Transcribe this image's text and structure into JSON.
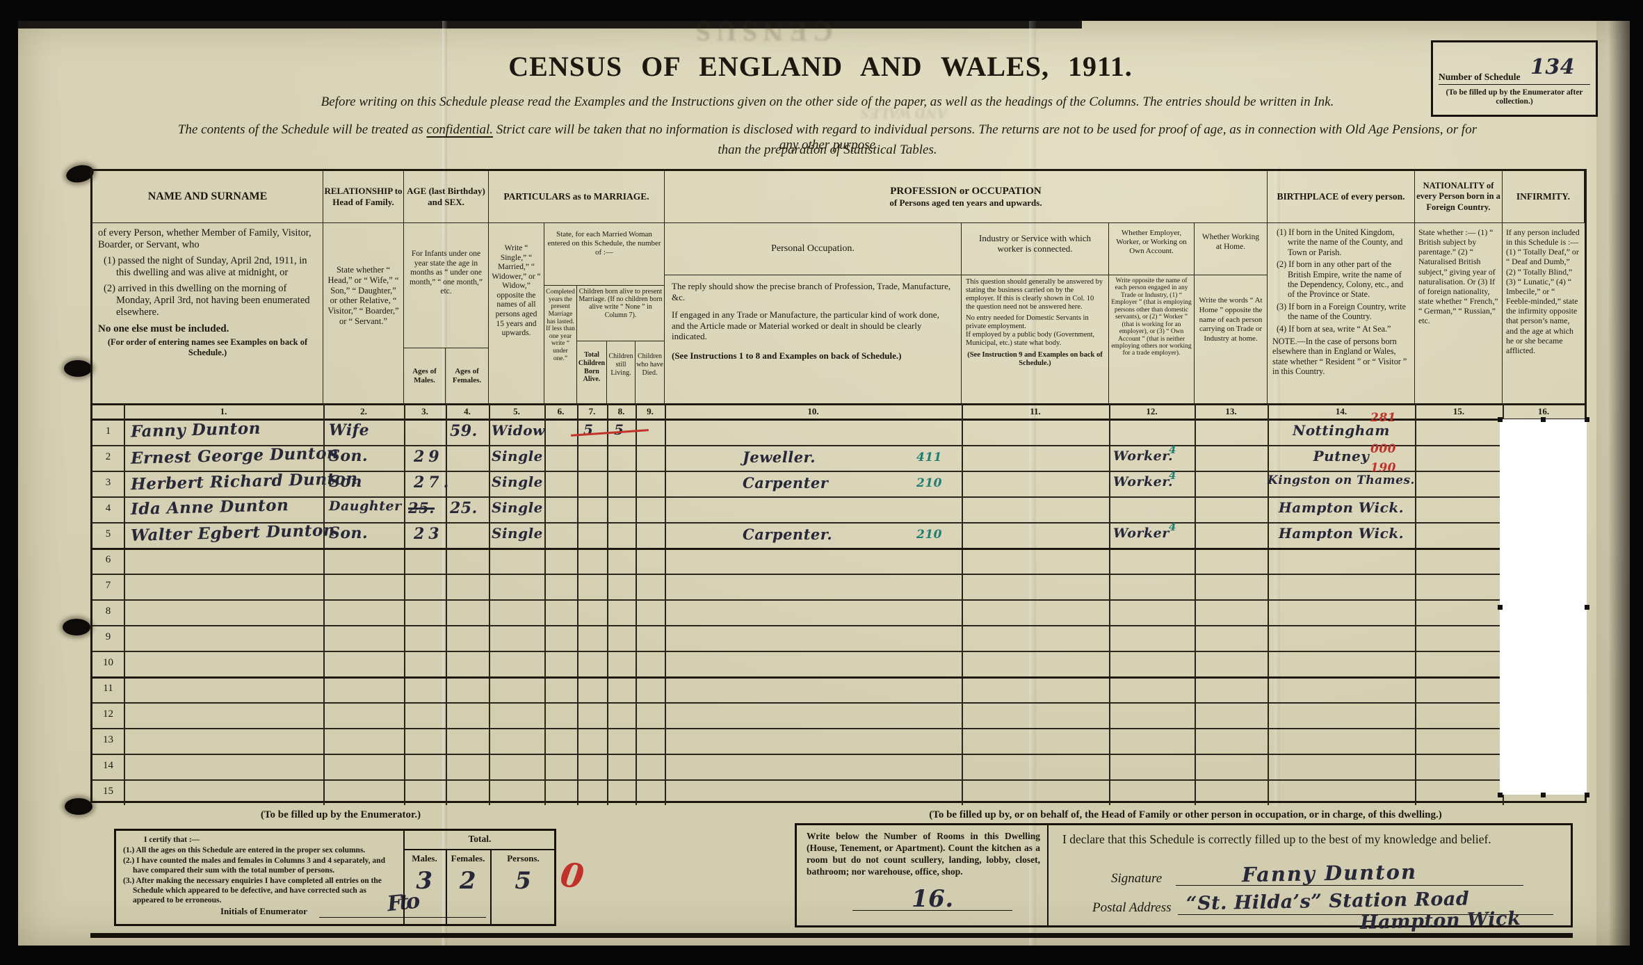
{
  "title": "CENSUS OF ENGLAND AND WALES, 1911.",
  "schedule": {
    "number_label": "Number of Schedule",
    "number_value": "134",
    "number_note": "(To be filled up by the Enumerator after collection.)"
  },
  "instructions": {
    "line1": "Before writing on this Schedule please read the Examples and the Instructions given on the other side of the paper, as well as the headings of the Columns.  The entries should be written in Ink.",
    "line2a": "The contents of the Schedule will be treated as ",
    "confidential": "confidential.",
    "line2b": "  Strict care will be taken that no information is disclosed with regard to individual persons.  The returns are not to be used for proof of age, as in connection with Old Age Pensions, or for any other purpose",
    "line3": "than the preparation of Statistical Tables."
  },
  "columns": {
    "numbers": [
      "1.",
      "2.",
      "3.",
      "4.",
      "5.",
      "6.",
      "7.",
      "8.",
      "9.",
      "10.",
      "11.",
      "12.",
      "13.",
      "14.",
      "15.",
      "16."
    ],
    "name": {
      "label": "NAME AND SURNAME",
      "intro": "of every Person, whether Member of Family, Visitor, Boarder, or Servant, who",
      "item1": "(1) passed the night of Sunday, April 2nd, 1911, in this dwelling and was alive at midnight, or",
      "item2": "(2) arrived in this dwelling on the morning of Monday, April 3rd, not having been enumerated elsewhere.",
      "note1": "No one else must be included.",
      "note2": "(For order of entering names see Examples on back of Schedule.)"
    },
    "relationship": {
      "label": "RELATIONSHIP to Head of Family.",
      "desc": "State whether “ Head,” or “ Wife,” “ Son,” “ Daughter,” or other Relative, “ Visitor,” “ Boarder,” or “ Servant.”"
    },
    "age": {
      "label": "AGE (last Birthday) and SEX.",
      "infants": "For Infants under one year state the age in months as “ under one month,” “ one month,” etc.",
      "males": "Ages of Males.",
      "females": "Ages of Females."
    },
    "marriage": {
      "group": "PARTICULARS as to MARRIAGE.",
      "single": "Write “ Single,” “ Married,” “ Widower,” or “ Widow,” opposite the names of all persons aged 15 years and upwards.",
      "married_woman": "State, for each Married Woman entered on this Schedule, the number of :—",
      "years": "Completed years the present Marriage has lasted. If less than one year write “ under one.”",
      "children_group": "Children born alive to present Marriage. (If no children born alive write “ None ” in Column 7).",
      "born": "Total Children Born Alive.",
      "living": "Children still Living.",
      "died": "Children who have Died."
    },
    "profession": {
      "group": "PROFESSION or OCCUPATION",
      "group_sub": "of Persons aged ten years and upwards.",
      "personal_label": "Personal Occupation.",
      "personal_p1": "The reply should show the precise branch of Profession, Trade, Manufacture, &c.",
      "personal_p2": "If engaged in any Trade or Manufacture, the particular kind of work done, and the Article made or Material worked or dealt in should be clearly indicated.",
      "personal_p3": "(See Instructions 1 to 8 and Examples on back of Schedule.)",
      "industry_label": "Industry or Service with which worker is connected.",
      "industry_p1": "This question should generally be answered by stating the business carried on by the employer.  If this is clearly shown in Col. 10 the question need not be answered here.",
      "industry_p2": "No entry needed for Domestic Servants in private employment.",
      "industry_p3": "If employed by a public body (Government, Municipal, etc.) state what body.",
      "industry_p4": "(See Instruction 9 and Examples on back of Schedule.)",
      "employer_label": "Whether Employer, Worker, or Working on Own Account.",
      "employer_desc": "Write opposite the name of each person engaged in any Trade or Industry, (1) “ Employer ” (that is employing persons other than domestic servants), or (2) “ Worker ” (that is working for an employer), or (3) “ Own Account ” (that is neither employing others nor working for a trade employer).",
      "home_label": "Whether Working at Home.",
      "home_desc": "Write the words “ At Home ” opposite the name of each person carrying on Trade or Industry at home."
    },
    "birthplace": {
      "label": "BIRTHPLACE of every person.",
      "item1": "(1) If born in the United Kingdom, write the name of the County, and Town or Parish.",
      "item2": "(2) If born in any other part of the British Empire, write the name of the Dependency, Colony, etc., and of the Province or State.",
      "item3": "(3) If born in a Foreign Country, write the name of the Country.",
      "item4": "(4) If born at sea, write “ At Sea.”",
      "note": "NOTE.—In the case of persons born elsewhere than in England or Wales, state whether “ Resident ” or “ Visitor ” in this Country."
    },
    "nationality": {
      "label": "NATIONALITY of every Person born in a Foreign Country.",
      "desc": "State whether :— (1) “ British subject by parentage.” (2) “ Naturalised British subject,” giving year of naturalisation. Or (3) If of foreign nationality, state whether “ French,” “ German,” “ Russian,” etc."
    },
    "infirmity": {
      "label": "INFIRMITY.",
      "desc": "If any person included in this Schedule is :— (1) “ Totally Deaf,” or “ Deaf and Dumb,” (2) “ Totally Blind,” (3) “ Lunatic,” (4) “ Imbecile,” or “ Feeble-minded,” state the infirmity opposite that person’s name, and the age at which he or she became afflicted."
    }
  },
  "rows": [
    {
      "num": "1",
      "name": "Fanny Dunton",
      "relationship": "Wife",
      "age_male": "",
      "age_male_struck": "",
      "age_female": "59.",
      "marriage": "Widow",
      "children_born": "5",
      "children_living": "5",
      "children_red_strike": true,
      "occupation": "",
      "occupation_code": "",
      "employer": "",
      "employer_code": "",
      "birthplace": "Nottingham",
      "birthplace_code": "281"
    },
    {
      "num": "2",
      "name": "Ernest George Dunton",
      "relationship": "Son.",
      "age_male": "29",
      "age_male_struck": "",
      "age_female": "",
      "marriage": "Single",
      "children_born": "",
      "children_living": "",
      "children_red_strike": false,
      "occupation": "Jeweller.",
      "occupation_code": "411",
      "employer": "Worker.",
      "employer_code": "4",
      "birthplace": "Putney",
      "birthplace_code": "000"
    },
    {
      "num": "3",
      "name": "Herbert Richard Dunton",
      "relationship": "Son",
      "age_male": "27.",
      "age_male_struck": "",
      "age_female": "",
      "marriage": "Single",
      "children_born": "",
      "children_living": "",
      "children_red_strike": false,
      "occupation": "Carpenter",
      "occupation_code": "210",
      "employer": "Worker.",
      "employer_code": "4",
      "birthplace": "Kingston on Thames.",
      "birthplace_code": "190"
    },
    {
      "num": "4",
      "name": "Ida Anne Dunton",
      "relationship": "Daughter",
      "age_male": "",
      "age_male_struck": "25.",
      "age_female": "25.",
      "marriage": "Single",
      "children_born": "",
      "children_living": "",
      "children_red_strike": false,
      "occupation": "",
      "occupation_code": "",
      "employer": "",
      "employer_code": "",
      "birthplace": "Hampton Wick.",
      "birthplace_code": ""
    },
    {
      "num": "5",
      "name": "Walter Egbert Dunton",
      "relationship": "Son.",
      "age_male": "23",
      "age_male_struck": "",
      "age_female": "",
      "marriage": "Single",
      "children_born": "",
      "children_living": "",
      "children_red_strike": false,
      "occupation": "Carpenter.",
      "occupation_code": "210",
      "employer": "Worker",
      "employer_code": "4",
      "birthplace": "Hampton Wick.",
      "birthplace_code": ""
    },
    {
      "num": "6"
    },
    {
      "num": "7"
    },
    {
      "num": "8"
    },
    {
      "num": "9"
    },
    {
      "num": "10"
    },
    {
      "num": "11"
    },
    {
      "num": "12"
    },
    {
      "num": "13"
    },
    {
      "num": "14"
    },
    {
      "num": "15"
    }
  ],
  "enumerator": {
    "caption": "(To be filled up by the Enumerator.)",
    "certify_intro": "I certify that :—",
    "item1": "(1.) All the ages on this Schedule are entered in the proper sex columns.",
    "item2": "(2.) I have counted the males and females in Columns 3 and 4 separately, and have compared their sum with the total number of persons.",
    "item3": "(3.) After making the necessary enquiries I have completed all entries on the Schedule which appeared to be defective, and have corrected such as appeared to be erroneous.",
    "initials_label": "Initials of Enumerator",
    "initials_scrawl": "Fto",
    "total_label": "Total.",
    "males_label": "Males.",
    "females_label": "Females.",
    "persons_label": "Persons.",
    "males_value": "3",
    "females_value": "2",
    "persons_value": "5",
    "red_mark": "0"
  },
  "household": {
    "caption": "(To be filled up by, or on behalf of, the Head of Family or other person in occupation, or in charge, of this dwelling.)",
    "rooms_text": "Write below the Number of Rooms in this Dwelling (House, Tenement, or Apartment).  Count the kitchen as a room but do not count scullery, landing, lobby, closet, bathroom; nor warehouse, office, shop.",
    "rooms_value": "16.",
    "declaration": "I declare that this Schedule is correctly filled up to the best of my knowledge and belief.",
    "signature_label": "Signature",
    "signature_value": "Fanny Dunton",
    "postal_label": "Postal Address",
    "postal_value_line1": "“St. Hilda’s” Station Road",
    "postal_value_line2": "Hampton Wick"
  },
  "artifacts": {
    "ghost1": "CENSUS",
    "ghost2": "AND WALES"
  },
  "colors": {
    "paper": "#d8d2b6",
    "ink": "#1c170f",
    "handwriting": "#262738",
    "red_annotation": "#bf3129",
    "teal_annotation": "#1f7d72",
    "redaction": "#ffffff"
  }
}
